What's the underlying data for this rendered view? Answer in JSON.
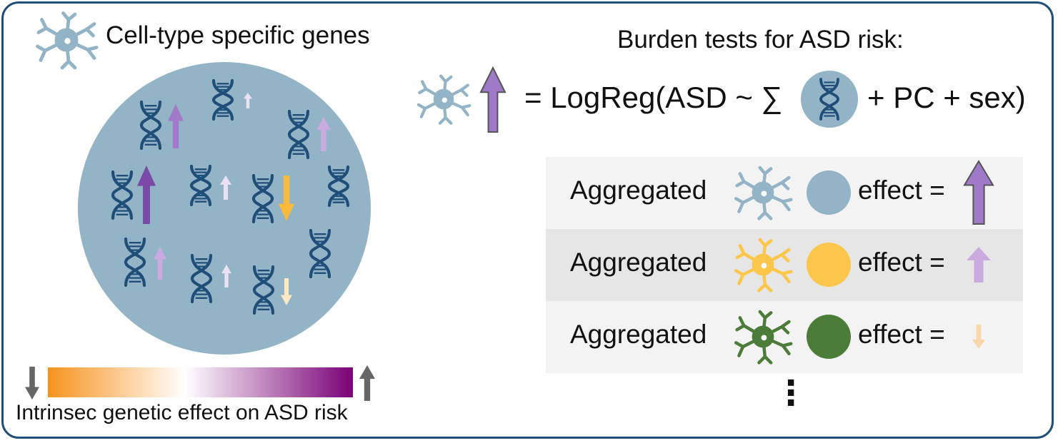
{
  "legend": {
    "title": "Cell-type specific genes"
  },
  "burden": {
    "title": "Burden tests for ASD risk:",
    "equation": {
      "lhs_suffix": "= LogReg(ASD ~ ∑",
      "rhs": "+ PC + sex)"
    }
  },
  "rows": [
    {
      "label": "Aggregated",
      "effect_label": "effect =",
      "cell_color": "#93b3c6",
      "effect_direction": "up",
      "effect_color": "#a07ac8"
    },
    {
      "label": "Aggregated",
      "effect_label": "effect =",
      "cell_color": "#fcc64a",
      "effect_direction": "up",
      "effect_color": "#c9abe0"
    },
    {
      "label": "Aggregated",
      "effect_label": "effect =",
      "cell_color": "#4c7c3a",
      "effect_direction": "down",
      "effect_color": "#f9d7aa"
    }
  ],
  "continuation": "⋮",
  "colorbar": {
    "label": "Intrinsec genetic effect on ASD risk",
    "gradient": [
      "#f7931e",
      "#ffffff",
      "#7a0177"
    ]
  },
  "colors": {
    "border": "#1f4e79",
    "gene_circle": "#93b3c6",
    "dna": "#1f4e79",
    "arrow_strong_up": "#7b4aa8",
    "arrow_up": "#a07ac8",
    "arrow_light_up": "#c9abe0",
    "arrow_faint_up": "#ece0f5",
    "arrow_down": "#f9b93a",
    "arrow_faint_down": "#fde8c2",
    "gray_arrow": "#666666",
    "row_bg_light": "#f3f3f3",
    "row_bg_dark": "#e6e6e6"
  },
  "icons": [
    "neuron-icon",
    "dna-icon",
    "arrow-up-icon",
    "arrow-down-icon"
  ]
}
